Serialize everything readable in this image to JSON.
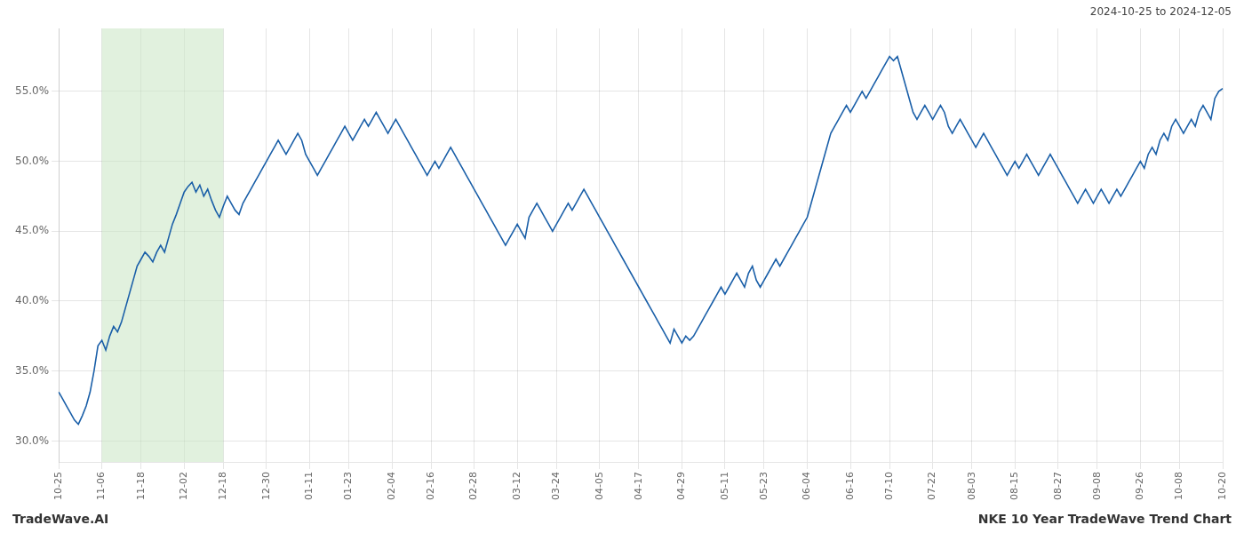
{
  "chart_data": {
    "type": "line",
    "annotations": [
      {
        "text": "2024-10-25 to 2024-12-05"
      },
      {
        "text": "TradeWave.AI"
      },
      {
        "text": "NKE 10 Year TradeWave Trend Chart"
      }
    ],
    "color": "#1a5fa8",
    "grid": true,
    "shaded_region": {
      "from": "11-06",
      "to": "12-18",
      "color": "#c8e6c2"
    },
    "ylim": [
      28.5,
      59.5
    ],
    "yticks": [
      {
        "value": 30.0,
        "label": "30.0%"
      },
      {
        "value": 35.0,
        "label": "35.0%"
      },
      {
        "value": 40.0,
        "label": "40.0%"
      },
      {
        "value": 45.0,
        "label": "45.0%"
      },
      {
        "value": 50.0,
        "label": "50.0%"
      },
      {
        "value": 55.0,
        "label": "55.0%"
      }
    ],
    "categories": [
      "10-25",
      null,
      null,
      null,
      null,
      null,
      null,
      null,
      null,
      null,
      null,
      "11-06",
      null,
      null,
      null,
      null,
      null,
      null,
      null,
      null,
      null,
      "11-18",
      null,
      null,
      null,
      null,
      null,
      null,
      null,
      null,
      null,
      null,
      "12-02",
      null,
      null,
      null,
      null,
      null,
      null,
      null,
      null,
      null,
      "12-18",
      null,
      null,
      null,
      null,
      null,
      null,
      null,
      null,
      null,
      null,
      "12-30",
      null,
      null,
      null,
      null,
      null,
      null,
      null,
      null,
      null,
      null,
      "01-11",
      null,
      null,
      null,
      null,
      null,
      null,
      null,
      null,
      null,
      "01-23",
      null,
      null,
      null,
      null,
      null,
      null,
      null,
      null,
      null,
      null,
      "02-04",
      null,
      null,
      null,
      null,
      null,
      null,
      null,
      null,
      null,
      "02-16",
      null,
      null,
      null,
      null,
      null,
      null,
      null,
      null,
      null,
      null,
      "02-28",
      null,
      null,
      null,
      null,
      null,
      null,
      null,
      null,
      null,
      null,
      "03-12",
      null,
      null,
      null,
      null,
      null,
      null,
      null,
      null,
      null,
      "03-24",
      null,
      null,
      null,
      null,
      null,
      null,
      null,
      null,
      null,
      null,
      "04-05",
      null,
      null,
      null,
      null,
      null,
      null,
      null,
      null,
      null,
      "04-17",
      null,
      null,
      null,
      null,
      null,
      null,
      null,
      null,
      null,
      null,
      "04-29",
      null,
      null,
      null,
      null,
      null,
      null,
      null,
      null,
      null,
      null,
      "05-11",
      null,
      null,
      null,
      null,
      null,
      null,
      null,
      null,
      null,
      "05-23",
      null,
      null,
      null,
      null,
      null,
      null,
      null,
      null,
      null,
      null,
      "06-04",
      null,
      null,
      null,
      null,
      null,
      null,
      null,
      null,
      null,
      null,
      "06-16",
      null,
      null,
      null,
      null,
      null,
      null,
      null,
      null,
      null,
      "07-10",
      null,
      null,
      null,
      null,
      null,
      null,
      null,
      null,
      null,
      null,
      "07-22",
      null,
      null,
      null,
      null,
      null,
      null,
      null,
      null,
      null,
      "08-03",
      null,
      null,
      null,
      null,
      null,
      null,
      null,
      null,
      null,
      null,
      "08-15",
      null,
      null,
      null,
      null,
      null,
      null,
      null,
      null,
      null,
      null,
      "08-27",
      null,
      null,
      null,
      null,
      null,
      null,
      null,
      null,
      null,
      "09-08",
      null,
      null,
      null,
      null,
      null,
      null,
      null,
      null,
      null,
      null,
      "09-26",
      null,
      null,
      null,
      null,
      null,
      null,
      null,
      null,
      null,
      "10-08",
      null,
      null,
      null,
      null,
      null,
      null,
      null,
      null,
      null,
      null,
      "10-20"
    ],
    "values": [
      33.5,
      33.0,
      32.5,
      32.0,
      31.5,
      31.2,
      31.8,
      32.5,
      33.5,
      35.0,
      36.8,
      37.2,
      36.5,
      37.5,
      38.2,
      37.8,
      38.5,
      39.5,
      40.5,
      41.5,
      42.5,
      43.0,
      43.5,
      43.2,
      42.8,
      43.5,
      44.0,
      43.5,
      44.5,
      45.5,
      46.2,
      47.0,
      47.8,
      48.2,
      48.5,
      47.8,
      48.3,
      47.5,
      48.0,
      47.2,
      46.5,
      46.0,
      46.8,
      47.5,
      47.0,
      46.5,
      46.2,
      47.0,
      47.5,
      48.0,
      48.5,
      49.0,
      49.5,
      50.0,
      50.5,
      51.0,
      51.5,
      51.0,
      50.5,
      51.0,
      51.5,
      52.0,
      51.5,
      50.5,
      50.0,
      49.5,
      49.0,
      49.5,
      50.0,
      50.5,
      51.0,
      51.5,
      52.0,
      52.5,
      52.0,
      51.5,
      52.0,
      52.5,
      53.0,
      52.5,
      53.0,
      53.5,
      53.0,
      52.5,
      52.0,
      52.5,
      53.0,
      52.5,
      52.0,
      51.5,
      51.0,
      50.5,
      50.0,
      49.5,
      49.0,
      49.5,
      50.0,
      49.5,
      50.0,
      50.5,
      51.0,
      50.5,
      50.0,
      49.5,
      49.0,
      48.5,
      48.0,
      47.5,
      47.0,
      46.5,
      46.0,
      45.5,
      45.0,
      44.5,
      44.0,
      44.5,
      45.0,
      45.5,
      45.0,
      44.5,
      46.0,
      46.5,
      47.0,
      46.5,
      46.0,
      45.5,
      45.0,
      45.5,
      46.0,
      46.5,
      47.0,
      46.5,
      47.0,
      47.5,
      48.0,
      47.5,
      47.0,
      46.5,
      46.0,
      45.5,
      45.0,
      44.5,
      44.0,
      43.5,
      43.0,
      42.5,
      42.0,
      41.5,
      41.0,
      40.5,
      40.0,
      39.5,
      39.0,
      38.5,
      38.0,
      37.5,
      37.0,
      38.0,
      37.5,
      37.0,
      37.5,
      37.2,
      37.5,
      38.0,
      38.5,
      39.0,
      39.5,
      40.0,
      40.5,
      41.0,
      40.5,
      41.0,
      41.5,
      42.0,
      41.5,
      41.0,
      42.0,
      42.5,
      41.5,
      41.0,
      41.5,
      42.0,
      42.5,
      43.0,
      42.5,
      43.0,
      43.5,
      44.0,
      44.5,
      45.0,
      45.5,
      46.0,
      47.0,
      48.0,
      49.0,
      50.0,
      51.0,
      52.0,
      52.5,
      53.0,
      53.5,
      54.0,
      53.5,
      54.0,
      54.5,
      55.0,
      54.5,
      55.0,
      55.5,
      56.0,
      56.5,
      57.0,
      57.5,
      57.2,
      57.5,
      56.5,
      55.5,
      54.5,
      53.5,
      53.0,
      53.5,
      54.0,
      53.5,
      53.0,
      53.5,
      54.0,
      53.5,
      52.5,
      52.0,
      52.5,
      53.0,
      52.5,
      52.0,
      51.5,
      51.0,
      51.5,
      52.0,
      51.5,
      51.0,
      50.5,
      50.0,
      49.5,
      49.0,
      49.5,
      50.0,
      49.5,
      50.0,
      50.5,
      50.0,
      49.5,
      49.0,
      49.5,
      50.0,
      50.5,
      50.0,
      49.5,
      49.0,
      48.5,
      48.0,
      47.5,
      47.0,
      47.5,
      48.0,
      47.5,
      47.0,
      47.5,
      48.0,
      47.5,
      47.0,
      47.5,
      48.0,
      47.5,
      48.0,
      48.5,
      49.0,
      49.5,
      50.0,
      49.5,
      50.5,
      51.0,
      50.5,
      51.5,
      52.0,
      51.5,
      52.5,
      53.0,
      52.5,
      52.0,
      52.5,
      53.0,
      52.5,
      53.5,
      54.0,
      53.5,
      53.0,
      54.5,
      55.0,
      55.2
    ]
  }
}
